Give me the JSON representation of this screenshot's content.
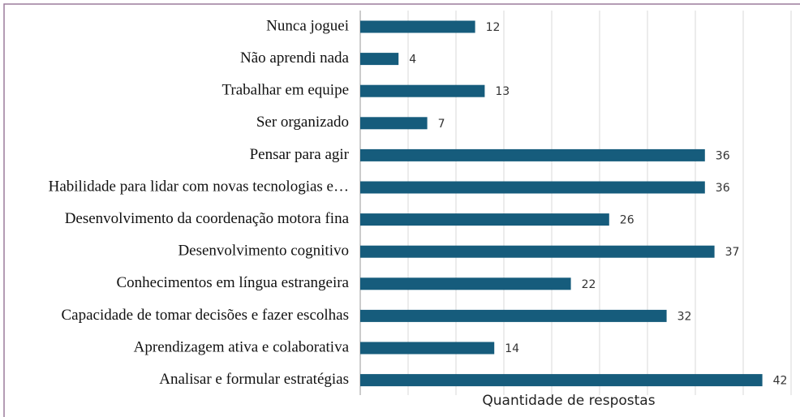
{
  "chart_data": {
    "type": "bar",
    "orientation": "horizontal",
    "x_label": "Quantidade de respostas",
    "categories": [
      "Nunca joguei",
      "Não aprendi nada",
      "Trabalhar em equipe",
      "Ser organizado",
      "Pensar para agir",
      "Habilidade para lidar com novas tecnologias e…",
      "Desenvolvimento da coordenação motora fina",
      "Desenvolvimento cognitivo",
      "Conhecimentos em língua estrangeira",
      "Capacidade de tomar decisões e fazer escolhas",
      "Aprendizagem ativa e colaborativa",
      "Analisar e formular estratégias"
    ],
    "values": [
      12,
      4,
      13,
      7,
      36,
      36,
      26,
      37,
      22,
      32,
      14,
      42
    ],
    "color": "#165c7c",
    "xlim": [
      0,
      45
    ],
    "xticks": [
      0,
      5,
      10,
      15,
      20,
      25,
      30,
      35,
      40,
      45
    ],
    "grid": true
  }
}
